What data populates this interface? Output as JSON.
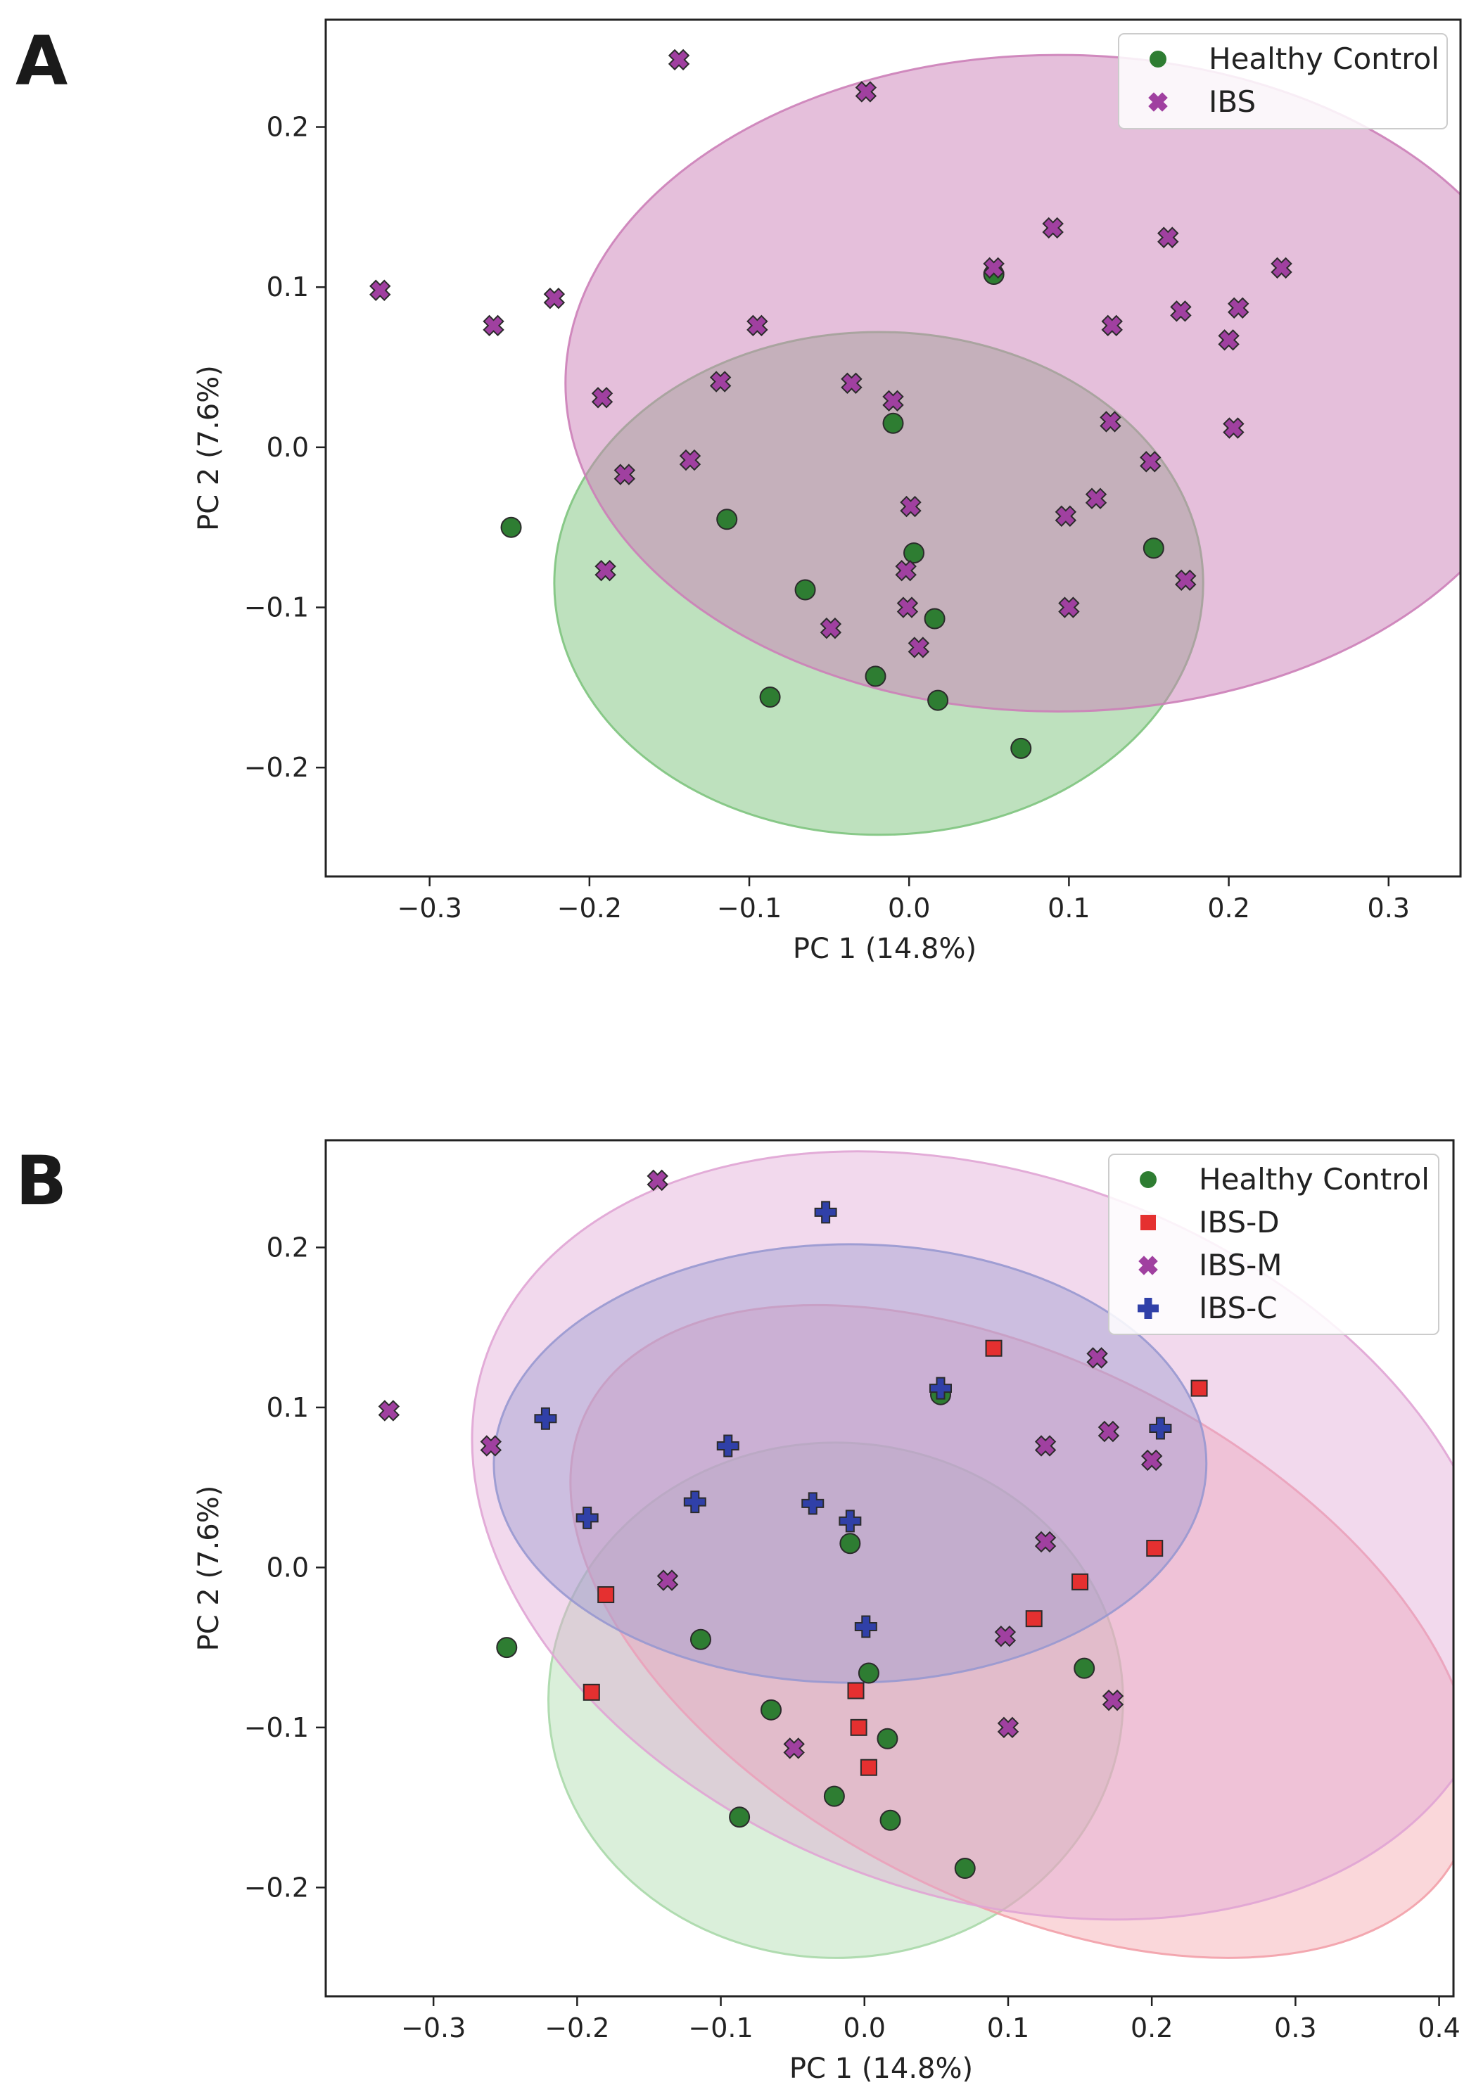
{
  "chart_data": [
    {
      "panel": "A",
      "type": "scatter",
      "title": "",
      "xlabel": "PC 1 (14.8%)",
      "ylabel": "PC 2 (7.6%)",
      "xlim": [
        -0.365,
        0.345
      ],
      "ylim": [
        -0.268,
        0.267
      ],
      "xticks": [
        -0.3,
        -0.2,
        -0.1,
        0.0,
        0.1,
        0.2,
        0.3
      ],
      "xtick_labels": [
        "−0.3",
        "−0.2",
        "−0.1",
        "0.0",
        "0.1",
        "0.2",
        "0.3"
      ],
      "yticks": [
        -0.2,
        -0.1,
        0.0,
        0.1,
        0.2
      ],
      "ytick_labels": [
        "−0.2",
        "−0.1",
        "0.0",
        "0.1",
        "0.2"
      ],
      "grid": false,
      "legend": "top-right",
      "series": [
        {
          "name": "Healthy Control",
          "marker": "circle",
          "color": "#2e7d32",
          "ellipse": {
            "cx": -0.019,
            "cy": -0.085,
            "rx": 0.203,
            "ry": 0.157,
            "angle": 0,
            "fill": "#7ec47e"
          },
          "points": [
            [
              -0.249,
              -0.05
            ],
            [
              -0.114,
              -0.045
            ],
            [
              -0.065,
              -0.089
            ],
            [
              -0.01,
              0.015
            ],
            [
              0.003,
              -0.066
            ],
            [
              0.016,
              -0.107
            ],
            [
              -0.021,
              -0.143
            ],
            [
              0.018,
              -0.158
            ],
            [
              -0.087,
              -0.156
            ],
            [
              0.07,
              -0.188
            ],
            [
              0.153,
              -0.063
            ],
            [
              0.053,
              0.108
            ]
          ]
        },
        {
          "name": "IBS",
          "marker": "x",
          "color": "#a040a0",
          "ellipse": {
            "cx": 0.093,
            "cy": 0.04,
            "rx": 0.308,
            "ry": 0.205,
            "angle": 0,
            "fill": "#cc80b8"
          },
          "points": [
            [
              -0.144,
              0.242
            ],
            [
              -0.027,
              0.222
            ],
            [
              -0.331,
              0.098
            ],
            [
              -0.26,
              0.076
            ],
            [
              -0.222,
              0.093
            ],
            [
              -0.192,
              0.031
            ],
            [
              -0.178,
              -0.017
            ],
            [
              -0.19,
              -0.077
            ],
            [
              -0.137,
              -0.008
            ],
            [
              -0.118,
              0.041
            ],
            [
              -0.095,
              0.076
            ],
            [
              -0.036,
              0.04
            ],
            [
              -0.01,
              0.029
            ],
            [
              0.001,
              -0.037
            ],
            [
              -0.002,
              -0.077
            ],
            [
              -0.001,
              -0.1
            ],
            [
              0.006,
              -0.125
            ],
            [
              -0.049,
              -0.113
            ],
            [
              0.053,
              0.112
            ],
            [
              0.09,
              0.137
            ],
            [
              0.127,
              0.076
            ],
            [
              0.126,
              0.016
            ],
            [
              0.098,
              -0.043
            ],
            [
              0.117,
              -0.032
            ],
            [
              0.151,
              -0.009
            ],
            [
              0.1,
              -0.1
            ],
            [
              0.162,
              0.131
            ],
            [
              0.17,
              0.085
            ],
            [
              0.2,
              0.067
            ],
            [
              0.206,
              0.087
            ],
            [
              0.233,
              0.112
            ],
            [
              0.203,
              0.012
            ],
            [
              0.173,
              -0.083
            ]
          ]
        }
      ]
    },
    {
      "panel": "B",
      "type": "scatter",
      "title": "",
      "xlabel": "PC 1 (14.8%)",
      "ylabel": "PC 2 (7.6%)",
      "xlim": [
        -0.375,
        0.41
      ],
      "ylim": [
        -0.268,
        0.267
      ],
      "xticks": [
        -0.3,
        -0.2,
        -0.1,
        0.0,
        0.1,
        0.2,
        0.3,
        0.4
      ],
      "xtick_labels": [
        "−0.3",
        "−0.2",
        "−0.1",
        "0.0",
        "0.1",
        "0.2",
        "0.3",
        "0.4"
      ],
      "yticks": [
        -0.2,
        -0.1,
        0.0,
        0.1,
        0.2
      ],
      "ytick_labels": [
        "−0.2",
        "−0.1",
        "0.0",
        "0.1",
        "0.2"
      ],
      "grid": false,
      "legend": "top-right",
      "series": [
        {
          "name": "Healthy Control",
          "marker": "circle",
          "color": "#2e7d32",
          "ellipse": {
            "cx": -0.02,
            "cy": -0.083,
            "rx": 0.2,
            "ry": 0.161,
            "angle": 0,
            "fill": "#a8d8a8"
          },
          "points": [
            [
              -0.249,
              -0.05
            ],
            [
              -0.114,
              -0.045
            ],
            [
              -0.065,
              -0.089
            ],
            [
              -0.01,
              0.015
            ],
            [
              0.003,
              -0.066
            ],
            [
              0.016,
              -0.107
            ],
            [
              -0.021,
              -0.143
            ],
            [
              0.018,
              -0.158
            ],
            [
              -0.087,
              -0.156
            ],
            [
              0.07,
              -0.188
            ],
            [
              0.153,
              -0.063
            ],
            [
              0.053,
              0.108
            ]
          ]
        },
        {
          "name": "IBS-D",
          "marker": "square",
          "color": "#e53030",
          "ellipse": {
            "cx": 0.11,
            "cy": -0.04,
            "rx": 0.34,
            "ry": 0.168,
            "angle": -27,
            "fill": "#f2a0a8"
          },
          "points": [
            [
              -0.18,
              -0.017
            ],
            [
              -0.19,
              -0.078
            ],
            [
              -0.006,
              -0.077
            ],
            [
              -0.004,
              -0.1
            ],
            [
              0.003,
              -0.125
            ],
            [
              0.09,
              0.137
            ],
            [
              0.118,
              -0.032
            ],
            [
              0.15,
              -0.009
            ],
            [
              0.202,
              0.012
            ],
            [
              0.233,
              0.112
            ]
          ]
        },
        {
          "name": "IBS-M",
          "marker": "x",
          "color": "#a040a0",
          "ellipse": {
            "cx": 0.085,
            "cy": 0.02,
            "rx": 0.37,
            "ry": 0.225,
            "angle": -20,
            "fill": "#e0a4d4"
          },
          "points": [
            [
              -0.144,
              0.242
            ],
            [
              -0.331,
              0.098
            ],
            [
              -0.26,
              0.076
            ],
            [
              -0.137,
              -0.008
            ],
            [
              -0.049,
              -0.113
            ],
            [
              0.126,
              0.076
            ],
            [
              0.126,
              0.016
            ],
            [
              0.098,
              -0.043
            ],
            [
              0.1,
              -0.1
            ],
            [
              0.162,
              0.131
            ],
            [
              0.17,
              0.085
            ],
            [
              0.2,
              0.067
            ],
            [
              0.173,
              -0.083
            ]
          ]
        },
        {
          "name": "IBS-C",
          "marker": "plus",
          "color": "#3040a8",
          "ellipse": {
            "cx": -0.01,
            "cy": 0.065,
            "rx": 0.248,
            "ry": 0.137,
            "angle": 0,
            "fill": "#9898d0"
          },
          "points": [
            [
              -0.027,
              0.222
            ],
            [
              -0.222,
              0.093
            ],
            [
              -0.193,
              0.031
            ],
            [
              -0.118,
              0.041
            ],
            [
              -0.095,
              0.076
            ],
            [
              -0.036,
              0.04
            ],
            [
              -0.01,
              0.029
            ],
            [
              0.001,
              -0.037
            ],
            [
              0.053,
              0.112
            ],
            [
              0.206,
              0.087
            ]
          ]
        }
      ]
    }
  ]
}
